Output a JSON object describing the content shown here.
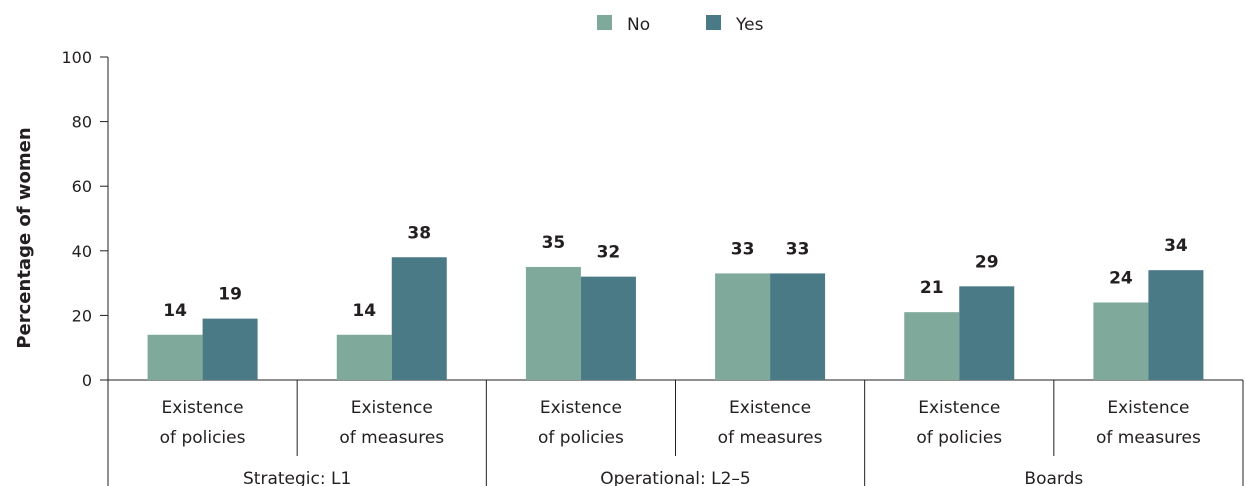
{
  "chart_data": {
    "type": "bar",
    "ylabel": "Percentage of women",
    "ylim": [
      0,
      100
    ],
    "yticks": [
      0,
      20,
      40,
      60,
      80,
      100
    ],
    "legend_position": "top-center",
    "groups": [
      {
        "label": "Strategic: L1",
        "categories": [
          [
            "Existence",
            "of policies"
          ],
          [
            "Existence",
            "of measures"
          ]
        ]
      },
      {
        "label": "Operational: L2–5",
        "categories": [
          [
            "Existence",
            "of policies"
          ],
          [
            "Existence",
            "of measures"
          ]
        ]
      },
      {
        "label": "Boards",
        "categories": [
          [
            "Existence",
            "of policies"
          ],
          [
            "Existence",
            "of measures"
          ]
        ]
      }
    ],
    "series": [
      {
        "name": "No",
        "color": "#7fa99b",
        "values": [
          14,
          14,
          35,
          33,
          21,
          24
        ]
      },
      {
        "name": "Yes",
        "color": "#4a7a86",
        "values": [
          19,
          38,
          32,
          33,
          29,
          34
        ]
      }
    ]
  }
}
